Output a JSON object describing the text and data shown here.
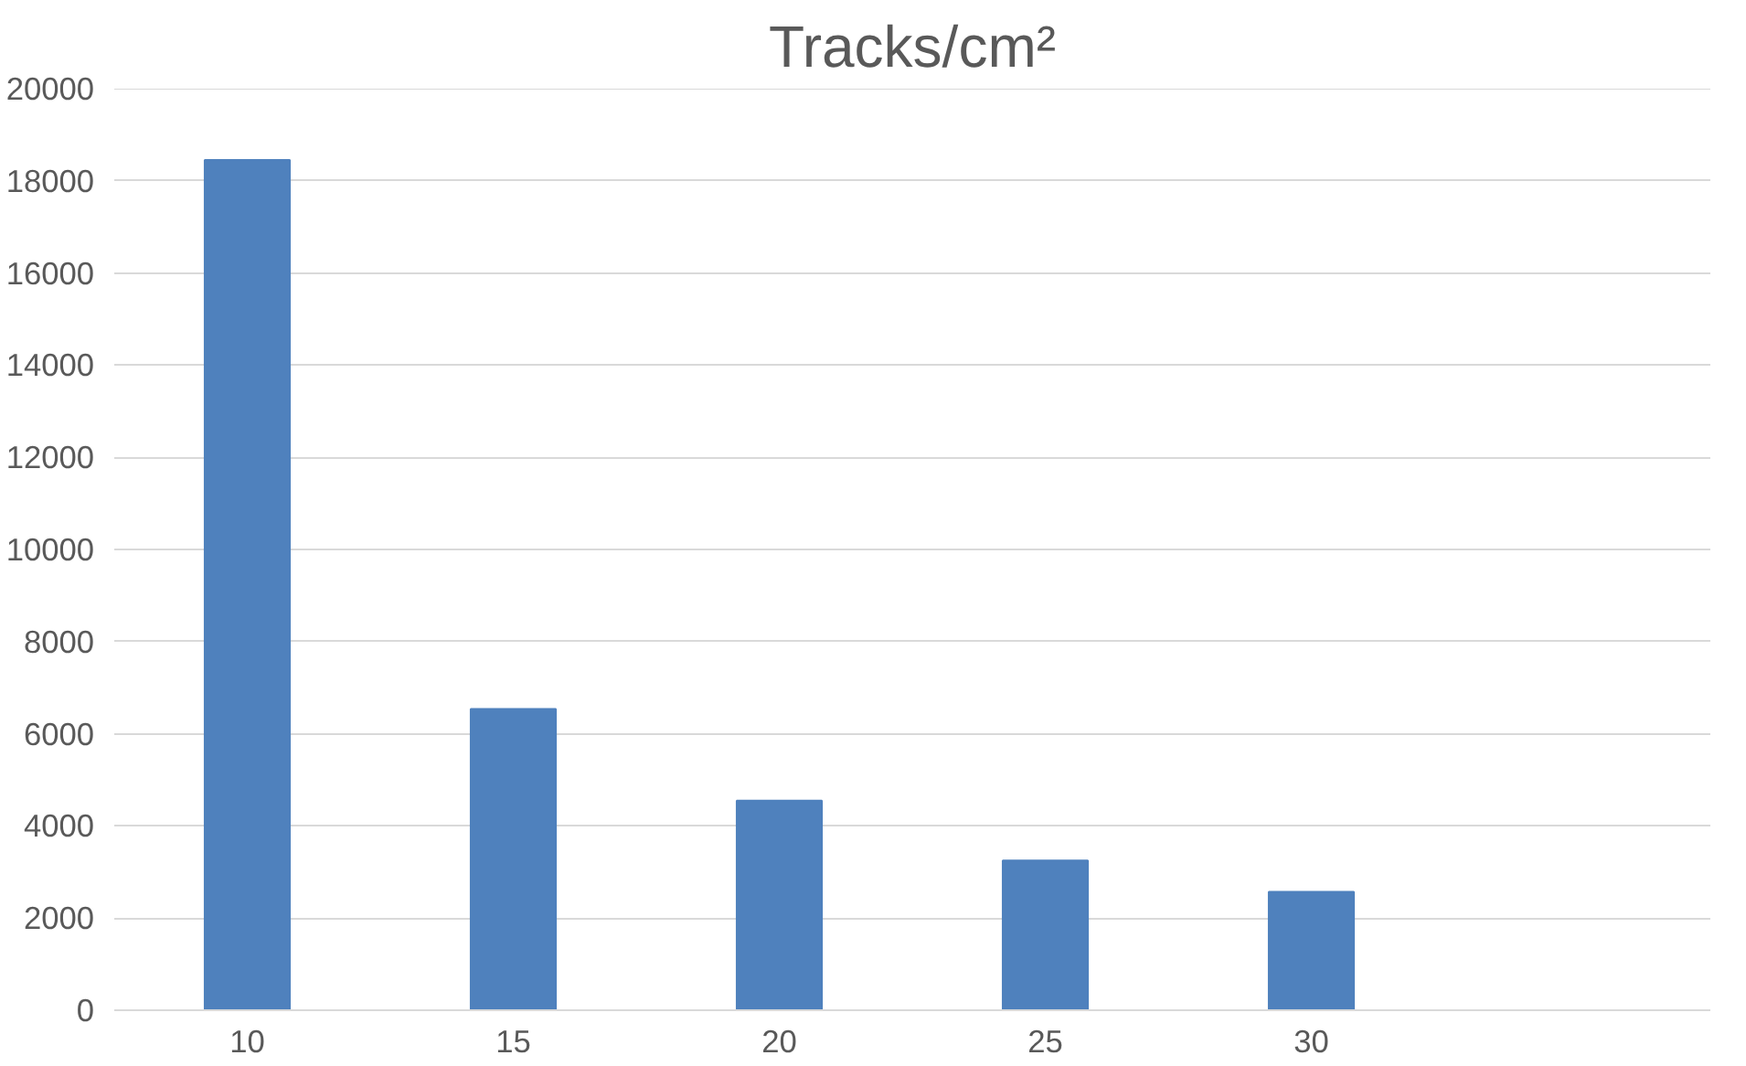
{
  "chart_data": {
    "type": "bar",
    "title": "Tracks/cm²",
    "categories": [
      "10",
      "15",
      "20",
      "25",
      "30",
      null
    ],
    "values": [
      18450,
      6540,
      4550,
      3250,
      2570,
      null
    ],
    "color": "#4f81bd",
    "ylim": [
      0,
      20000
    ],
    "yticks": [
      0,
      2000,
      4000,
      6000,
      8000,
      10000,
      12000,
      14000,
      16000,
      18000,
      20000
    ],
    "grid": "y"
  }
}
